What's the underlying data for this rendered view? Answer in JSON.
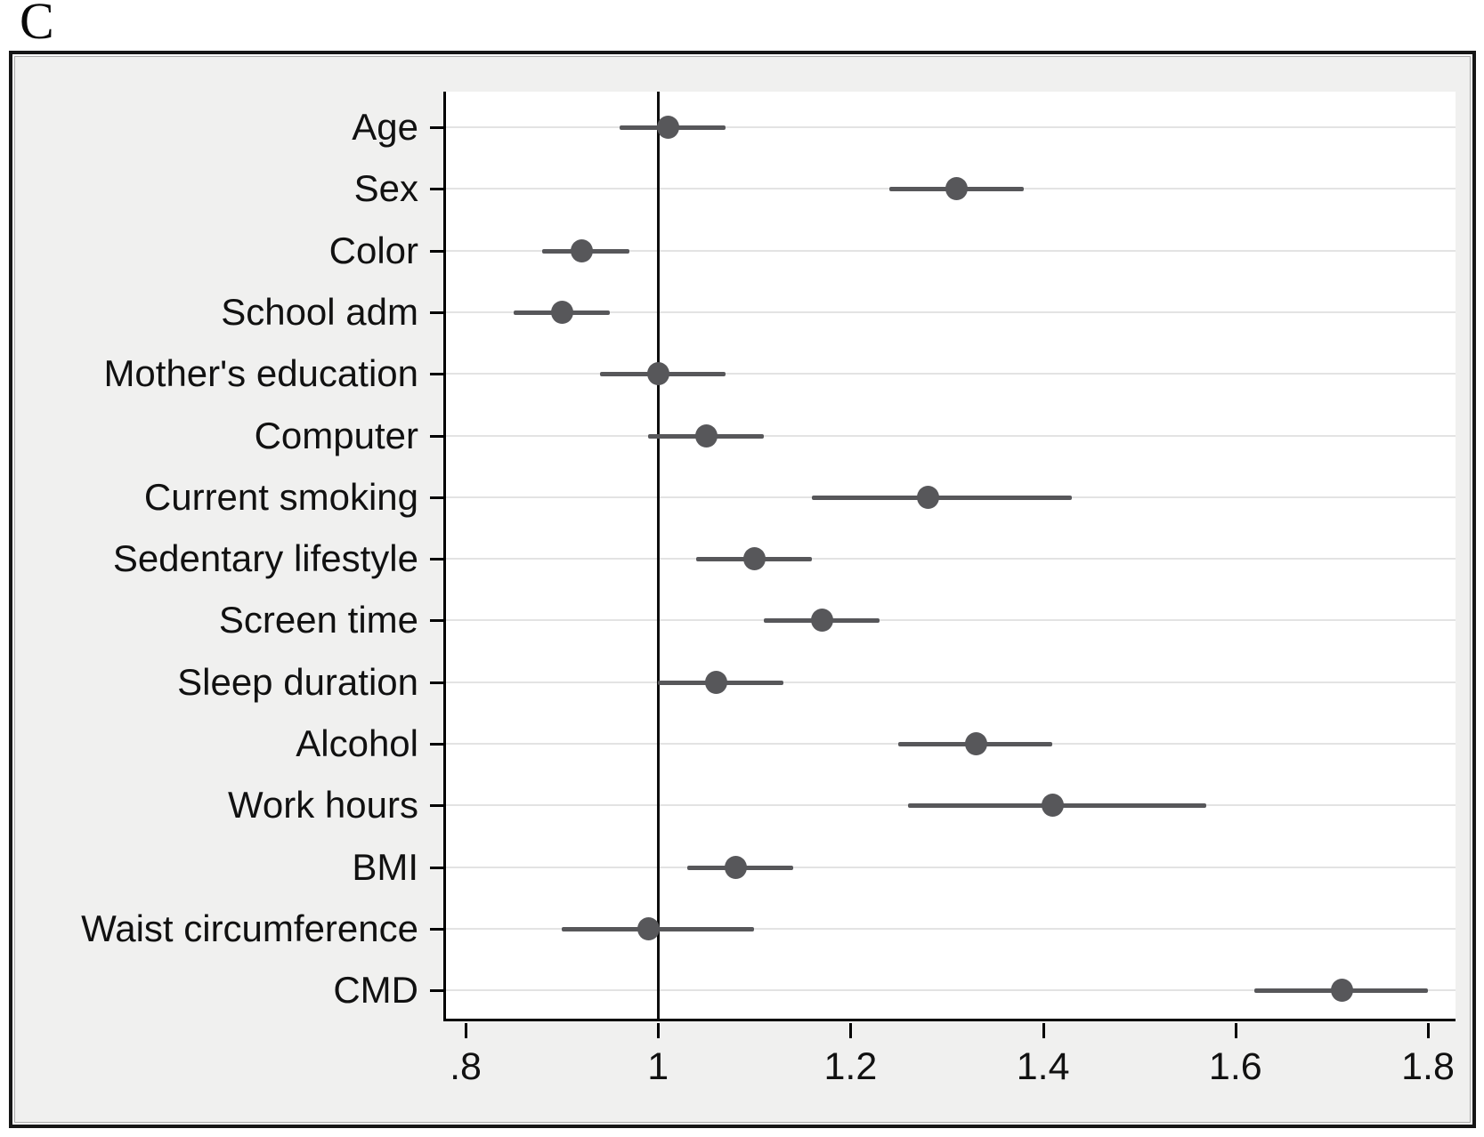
{
  "figure": {
    "panel_label": "C"
  },
  "chart_data": {
    "type": "scatter",
    "subtype": "forest-plot-dot-whisker",
    "title": "",
    "xlabel": "",
    "ylabel": "",
    "xlim": [
      0.775,
      1.83
    ],
    "grid": "horizontal-light",
    "legend_position": "none",
    "reference_line_x": 1,
    "x_ticks": [
      {
        "label": ".8",
        "value": 0.8
      },
      {
        "label": "1",
        "value": 1.0
      },
      {
        "label": "1.2",
        "value": 1.2
      },
      {
        "label": "1.4",
        "value": 1.4
      },
      {
        "label": "1.6",
        "value": 1.6
      },
      {
        "label": "1.8",
        "value": 1.8
      }
    ],
    "categories": [
      "Age",
      "Sex",
      "Color",
      "School adm",
      "Mother's education",
      "Computer",
      "Current smoking",
      "Sedentary lifestyle",
      "Screen time",
      "Sleep duration",
      "Alcohol",
      "Work hours",
      "BMI",
      "Waist circumference",
      "CMD"
    ],
    "rows": [
      {
        "label": "Age",
        "estimate": 1.01,
        "ci_low": 0.96,
        "ci_high": 1.07
      },
      {
        "label": "Sex",
        "estimate": 1.31,
        "ci_low": 1.24,
        "ci_high": 1.38
      },
      {
        "label": "Color",
        "estimate": 0.92,
        "ci_low": 0.88,
        "ci_high": 0.97
      },
      {
        "label": "School adm",
        "estimate": 0.9,
        "ci_low": 0.85,
        "ci_high": 0.95
      },
      {
        "label": "Mother's education",
        "estimate": 1.0,
        "ci_low": 0.94,
        "ci_high": 1.07
      },
      {
        "label": "Computer",
        "estimate": 1.05,
        "ci_low": 0.99,
        "ci_high": 1.11
      },
      {
        "label": "Current smoking",
        "estimate": 1.28,
        "ci_low": 1.16,
        "ci_high": 1.43
      },
      {
        "label": "Sedentary lifestyle",
        "estimate": 1.1,
        "ci_low": 1.04,
        "ci_high": 1.16
      },
      {
        "label": "Screen time",
        "estimate": 1.17,
        "ci_low": 1.11,
        "ci_high": 1.23
      },
      {
        "label": "Sleep duration",
        "estimate": 1.06,
        "ci_low": 1.0,
        "ci_high": 1.13
      },
      {
        "label": "Alcohol",
        "estimate": 1.33,
        "ci_low": 1.25,
        "ci_high": 1.41
      },
      {
        "label": "Work hours",
        "estimate": 1.41,
        "ci_low": 1.26,
        "ci_high": 1.57
      },
      {
        "label": "BMI",
        "estimate": 1.08,
        "ci_low": 1.03,
        "ci_high": 1.14
      },
      {
        "label": "Waist circumference",
        "estimate": 0.99,
        "ci_low": 0.9,
        "ci_high": 1.1
      },
      {
        "label": "CMD",
        "estimate": 1.71,
        "ci_low": 1.62,
        "ci_high": 1.8
      }
    ],
    "colors": {
      "marker": "#57575a",
      "ci_line": "#57575a",
      "axis": "#000000",
      "grid_line": "#e3e3e3",
      "reference_line": "#0d0d0d",
      "plot_background": "#ffffff",
      "panel_background": "#f0f0ef",
      "border": "#161616"
    }
  }
}
